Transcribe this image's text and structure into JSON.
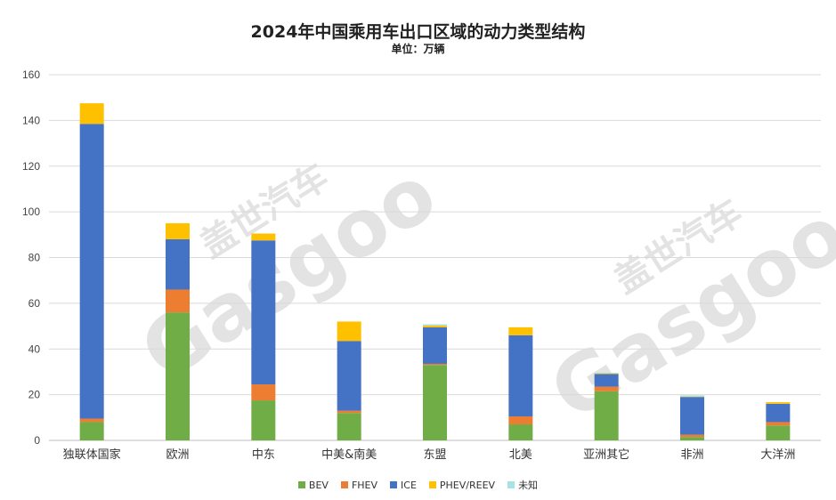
{
  "chart_data": {
    "type": "bar",
    "stacked": true,
    "title": "2024年中国乘用车出口区域的动力类型结构",
    "subtitle": "单位：万辆",
    "categories": [
      "独联体国家",
      "欧洲",
      "中东",
      "中美&南美",
      "东盟",
      "北美",
      "亚洲其它",
      "非洲",
      "大洋洲"
    ],
    "series": [
      {
        "name": "BEV",
        "color": "#70ad47",
        "values": [
          8,
          56,
          17.5,
          12,
          33,
          7,
          21.5,
          1.5,
          6.5
        ]
      },
      {
        "name": "FHEV",
        "color": "#ed7d31",
        "values": [
          1.5,
          10,
          7,
          1,
          0.5,
          3.5,
          2,
          1,
          1.5
        ]
      },
      {
        "name": "ICE",
        "color": "#4472c4",
        "values": [
          129,
          22,
          63,
          30.5,
          16,
          35.5,
          5.5,
          16.5,
          8
        ]
      },
      {
        "name": "PHEV/REEV",
        "color": "#ffc000",
        "values": [
          9,
          7,
          3,
          8.5,
          0.8,
          3.5,
          0.3,
          0.2,
          0.7
        ]
      },
      {
        "name": "未知",
        "color": "#a6e3e3",
        "values": [
          0,
          0,
          0,
          0,
          0.5,
          0,
          0.3,
          0.5,
          0
        ]
      }
    ],
    "ylim": [
      0,
      160
    ],
    "yticks": [
      0,
      20,
      40,
      60,
      80,
      100,
      120,
      140,
      160
    ],
    "grid": true,
    "legend_position": "bottom"
  },
  "watermark": {
    "cn": "盖世汽车",
    "en": "Gasgoo"
  }
}
